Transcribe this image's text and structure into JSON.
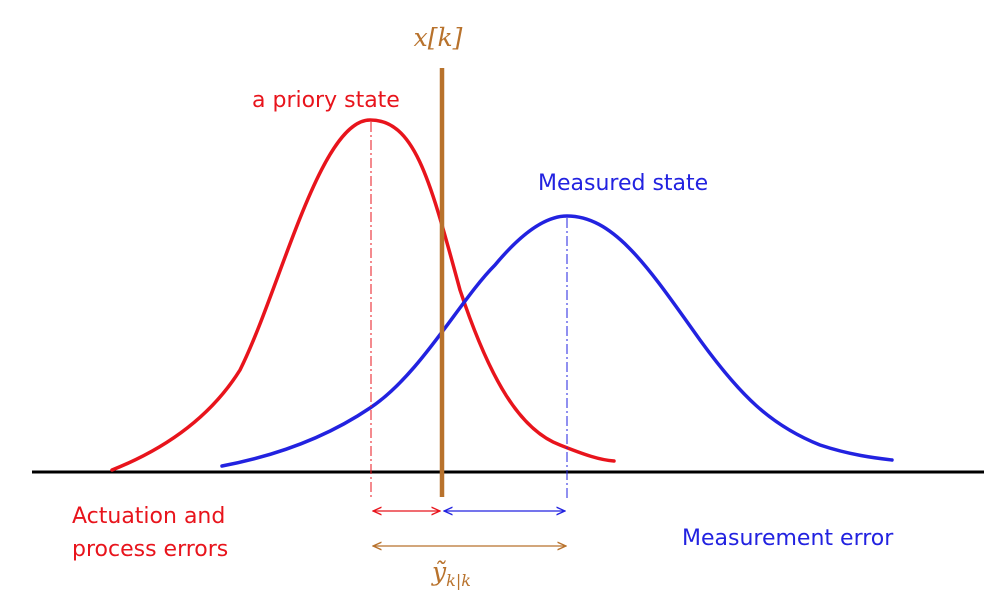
{
  "labels": {
    "true_state": "x[k]",
    "a_priori": "a priory state",
    "measured": "Measured state",
    "actuation_line1": "Actuation and",
    "actuation_line2": "process errors",
    "measurement_error": "Measurement error",
    "residual_base": "ỹ",
    "residual_sub": "k|k"
  },
  "colors": {
    "a_priori": "#e8141c",
    "measured": "#2222e0",
    "true_state": "#b8722c",
    "axis": "#000000"
  }
}
